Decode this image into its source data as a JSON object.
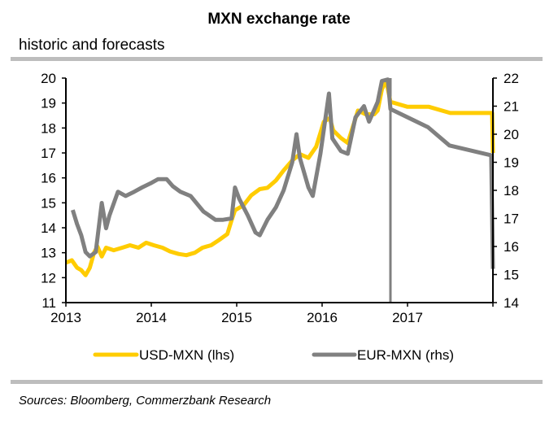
{
  "header": {
    "title": "MXN exchange rate",
    "subtitle": "historic and forecasts"
  },
  "footer": {
    "source": "Sources: Bloomberg, Commerzbank Research"
  },
  "colors": {
    "usd_mxn": "#ffcc00",
    "eur_mxn": "#808080",
    "rule": "#bdbdbd",
    "axis": "#000000"
  },
  "chart_data": {
    "type": "line",
    "title": "MXN exchange rate",
    "subtitle": "historic and forecasts",
    "xlabel": "",
    "ylabel": "",
    "x_ticks": [
      "2013",
      "2014",
      "2015",
      "2016",
      "2017"
    ],
    "xlim": [
      2013,
      2018
    ],
    "ylim_left": [
      11,
      20
    ],
    "ylim_right": [
      14,
      22
    ],
    "y_ticks_left": [
      "11",
      "12",
      "13",
      "14",
      "15",
      "16",
      "17",
      "18",
      "19",
      "20"
    ],
    "y_ticks_right": [
      "14",
      "15",
      "16",
      "17",
      "18",
      "19",
      "20",
      "21",
      "22"
    ],
    "grid": false,
    "legend": {
      "position": "bottom",
      "entries": [
        "USD-MXN (lhs)",
        "EUR-MXN (rhs)"
      ]
    },
    "forecast_marker_x": 2016.8,
    "series": [
      {
        "name": "USD-MXN (lhs)",
        "axis": "left",
        "points": [
          [
            2013.0,
            12.6
          ],
          [
            2013.07,
            12.7
          ],
          [
            2013.13,
            12.4
          ],
          [
            2013.18,
            12.3
          ],
          [
            2013.23,
            12.1
          ],
          [
            2013.28,
            12.4
          ],
          [
            2013.33,
            13.0
          ],
          [
            2013.37,
            13.25
          ],
          [
            2013.42,
            12.85
          ],
          [
            2013.47,
            13.2
          ],
          [
            2013.56,
            13.1
          ],
          [
            2013.66,
            13.2
          ],
          [
            2013.75,
            13.3
          ],
          [
            2013.85,
            13.2
          ],
          [
            2013.94,
            13.4
          ],
          [
            2014.03,
            13.3
          ],
          [
            2014.13,
            13.2
          ],
          [
            2014.22,
            13.05
          ],
          [
            2014.32,
            12.95
          ],
          [
            2014.41,
            12.9
          ],
          [
            2014.51,
            13.0
          ],
          [
            2014.6,
            13.2
          ],
          [
            2014.7,
            13.3
          ],
          [
            2014.79,
            13.5
          ],
          [
            2014.89,
            13.75
          ],
          [
            2014.94,
            14.3
          ],
          [
            2014.98,
            14.7
          ],
          [
            2015.08,
            14.9
          ],
          [
            2015.17,
            15.3
          ],
          [
            2015.27,
            15.55
          ],
          [
            2015.36,
            15.6
          ],
          [
            2015.46,
            15.9
          ],
          [
            2015.55,
            16.3
          ],
          [
            2015.65,
            16.7
          ],
          [
            2015.74,
            16.95
          ],
          [
            2015.84,
            16.8
          ],
          [
            2015.93,
            17.25
          ],
          [
            2016.02,
            18.25
          ],
          [
            2016.09,
            18.4
          ],
          [
            2016.13,
            17.9
          ],
          [
            2016.22,
            17.6
          ],
          [
            2016.3,
            17.4
          ],
          [
            2016.42,
            18.7
          ],
          [
            2016.51,
            18.55
          ],
          [
            2016.61,
            18.55
          ],
          [
            2016.65,
            18.7
          ],
          [
            2016.7,
            19.55
          ],
          [
            2016.75,
            19.9
          ],
          [
            2016.8,
            19.05
          ],
          [
            2017.0,
            18.85
          ],
          [
            2017.25,
            18.85
          ],
          [
            2017.5,
            18.6
          ],
          [
            2017.99,
            18.6
          ],
          [
            2018.0,
            17.0
          ]
        ]
      },
      {
        "name": "EUR-MXN (rhs)",
        "axis": "right",
        "points": [
          [
            2013.08,
            17.3
          ],
          [
            2013.13,
            16.8
          ],
          [
            2013.18,
            16.4
          ],
          [
            2013.23,
            15.8
          ],
          [
            2013.28,
            15.65
          ],
          [
            2013.35,
            15.8
          ],
          [
            2013.42,
            17.55
          ],
          [
            2013.47,
            16.65
          ],
          [
            2013.51,
            17.1
          ],
          [
            2013.61,
            17.95
          ],
          [
            2013.7,
            17.8
          ],
          [
            2013.8,
            17.95
          ],
          [
            2013.89,
            18.1
          ],
          [
            2013.99,
            18.25
          ],
          [
            2014.08,
            18.4
          ],
          [
            2014.18,
            18.4
          ],
          [
            2014.25,
            18.15
          ],
          [
            2014.34,
            17.95
          ],
          [
            2014.46,
            17.8
          ],
          [
            2014.61,
            17.25
          ],
          [
            2014.75,
            16.95
          ],
          [
            2014.84,
            16.95
          ],
          [
            2014.94,
            17.0
          ],
          [
            2014.98,
            18.1
          ],
          [
            2015.03,
            17.7
          ],
          [
            2015.13,
            17.1
          ],
          [
            2015.22,
            16.5
          ],
          [
            2015.27,
            16.4
          ],
          [
            2015.36,
            16.95
          ],
          [
            2015.46,
            17.4
          ],
          [
            2015.55,
            18.0
          ],
          [
            2015.65,
            19.0
          ],
          [
            2015.7,
            20.0
          ],
          [
            2015.74,
            19.15
          ],
          [
            2015.84,
            18.1
          ],
          [
            2015.89,
            17.8
          ],
          [
            2015.98,
            19.3
          ],
          [
            2016.08,
            21.45
          ],
          [
            2016.12,
            19.85
          ],
          [
            2016.22,
            19.4
          ],
          [
            2016.3,
            19.3
          ],
          [
            2016.39,
            20.6
          ],
          [
            2016.49,
            21.0
          ],
          [
            2016.55,
            20.45
          ],
          [
            2016.65,
            21.15
          ],
          [
            2016.7,
            21.9
          ],
          [
            2016.77,
            21.95
          ],
          [
            2016.8,
            20.9
          ],
          [
            2017.24,
            20.25
          ],
          [
            2017.49,
            19.6
          ],
          [
            2017.98,
            19.25
          ],
          [
            2018.0,
            15.2
          ]
        ]
      }
    ]
  }
}
